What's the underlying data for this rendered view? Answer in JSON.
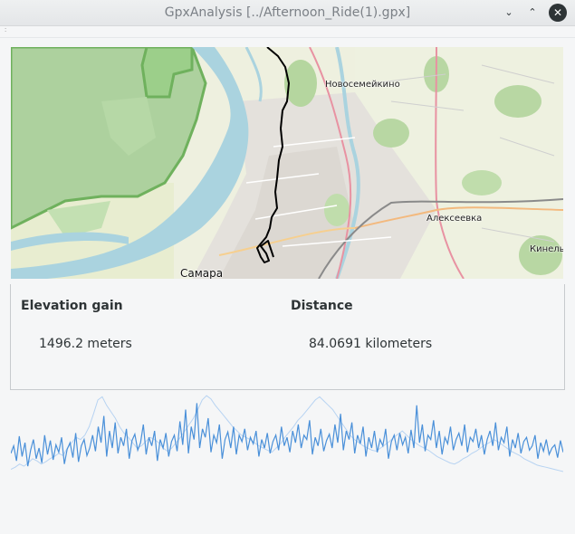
{
  "window": {
    "title": "GpxAnalysis [../Afternoon_Ride(1).gpx]",
    "minimize_glyph": "⌄",
    "maximize_glyph": "⌃",
    "close_glyph": "✕"
  },
  "map": {
    "labels": {
      "novosemeykino": "Новосемейкино",
      "alekseevka": "Алексеевка",
      "kinel": "Кинель",
      "samara": "Самара"
    },
    "colors": {
      "forest": "#add19e",
      "forest_border": "#6fb15d",
      "river": "#aad3df",
      "urban": "#e0dfdf",
      "track": "#000000",
      "highway": "#e892a2",
      "railway": "#8a8a8a"
    }
  },
  "stats": {
    "elevation_gain": {
      "title": "Elevation gain",
      "value": "1496.2 meters"
    },
    "distance": {
      "title": "Distance",
      "value": "84.0691 kilometers"
    }
  },
  "chart_data": {
    "type": "line",
    "title": "",
    "xlabel": "",
    "ylabel": "",
    "grid": false,
    "series": [
      {
        "color": "#4a90d9",
        "values": [
          0.45,
          0.52,
          0.38,
          0.61,
          0.42,
          0.55,
          0.33,
          0.48,
          0.58,
          0.4,
          0.5,
          0.36,
          0.62,
          0.44,
          0.57,
          0.39,
          0.53,
          0.46,
          0.6,
          0.35,
          0.49,
          0.55,
          0.41,
          0.64,
          0.37,
          0.52,
          0.58,
          0.43,
          0.5,
          0.62,
          0.47,
          0.7,
          0.55,
          0.8,
          0.42,
          0.66,
          0.5,
          0.74,
          0.45,
          0.6,
          0.52,
          0.68,
          0.4,
          0.57,
          0.63,
          0.48,
          0.55,
          0.72,
          0.44,
          0.6,
          0.52,
          0.66,
          0.38,
          0.58,
          0.5,
          0.64,
          0.42,
          0.56,
          0.62,
          0.47,
          0.75,
          0.53,
          0.86,
          0.45,
          0.7,
          0.58,
          0.92,
          0.5,
          0.68,
          0.6,
          0.78,
          0.46,
          0.62,
          0.55,
          0.72,
          0.4,
          0.58,
          0.65,
          0.5,
          0.7,
          0.44,
          0.62,
          0.56,
          0.68,
          0.48,
          0.6,
          0.54,
          0.66,
          0.42,
          0.58,
          0.5,
          0.64,
          0.45,
          0.56,
          0.62,
          0.48,
          0.7,
          0.52,
          0.6,
          0.46,
          0.66,
          0.55,
          0.72,
          0.5,
          0.62,
          0.58,
          0.76,
          0.44,
          0.6,
          0.52,
          0.68,
          0.47,
          0.57,
          0.63,
          0.5,
          0.72,
          0.55,
          0.82,
          0.48,
          0.66,
          0.58,
          0.74,
          0.45,
          0.62,
          0.54,
          0.7,
          0.42,
          0.6,
          0.5,
          0.66,
          0.46,
          0.58,
          0.52,
          0.68,
          0.4,
          0.56,
          0.62,
          0.48,
          0.64,
          0.53,
          0.6,
          0.45,
          0.67,
          0.5,
          0.9,
          0.55,
          0.72,
          0.47,
          0.62,
          0.58,
          0.76,
          0.5,
          0.66,
          0.44,
          0.6,
          0.54,
          0.7,
          0.48,
          0.58,
          0.64,
          0.52,
          0.72,
          0.46,
          0.6,
          0.56,
          0.68,
          0.5,
          0.62,
          0.44,
          0.58,
          0.66,
          0.52,
          0.74,
          0.48,
          0.6,
          0.55,
          0.7,
          0.42,
          0.58,
          0.5,
          0.64,
          0.45,
          0.56,
          0.6,
          0.48,
          0.52,
          0.62,
          0.4,
          0.55,
          0.47,
          0.58,
          0.44,
          0.5,
          0.53,
          0.41,
          0.57,
          0.46
        ]
      },
      {
        "color": "#b7d3f2",
        "values": [
          0.3,
          0.32,
          0.35,
          0.33,
          0.36,
          0.4,
          0.38,
          0.35,
          0.37,
          0.4,
          0.42,
          0.45,
          0.43,
          0.5,
          0.55,
          0.6,
          0.58,
          0.62,
          0.7,
          0.82,
          0.95,
          0.98,
          0.9,
          0.84,
          0.78,
          0.7,
          0.64,
          0.6,
          0.55,
          0.5,
          0.52,
          0.56,
          0.6,
          0.58,
          0.55,
          0.5,
          0.47,
          0.5,
          0.55,
          0.6,
          0.66,
          0.72,
          0.78,
          0.86,
          0.95,
          0.99,
          0.96,
          0.9,
          0.85,
          0.8,
          0.75,
          0.7,
          0.66,
          0.62,
          0.6,
          0.58,
          0.55,
          0.52,
          0.5,
          0.48,
          0.46,
          0.5,
          0.54,
          0.6,
          0.65,
          0.7,
          0.76,
          0.8,
          0.85,
          0.9,
          0.95,
          0.98,
          0.94,
          0.9,
          0.86,
          0.8,
          0.74,
          0.68,
          0.62,
          0.58,
          0.55,
          0.52,
          0.5,
          0.48,
          0.47,
          0.5,
          0.53,
          0.56,
          0.6,
          0.63,
          0.66,
          0.62,
          0.58,
          0.55,
          0.52,
          0.5,
          0.48,
          0.45,
          0.42,
          0.4,
          0.38,
          0.36,
          0.35,
          0.37,
          0.4,
          0.42,
          0.45,
          0.47,
          0.5,
          0.53,
          0.55,
          0.58,
          0.56,
          0.53,
          0.5,
          0.47,
          0.45,
          0.43,
          0.4,
          0.38,
          0.36,
          0.34,
          0.33,
          0.32,
          0.31,
          0.3,
          0.29,
          0.28
        ]
      }
    ]
  }
}
